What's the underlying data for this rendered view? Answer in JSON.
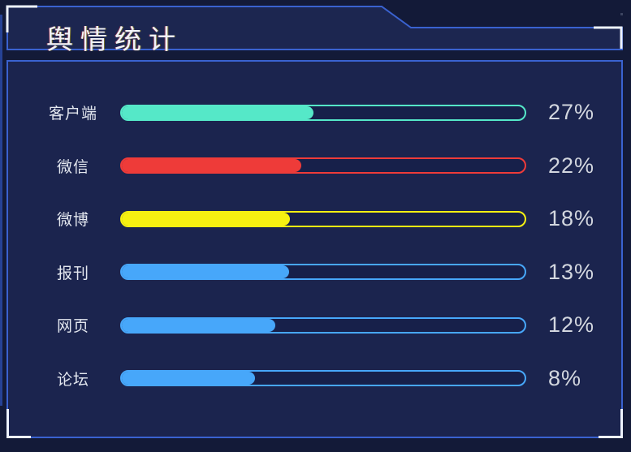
{
  "header": {
    "title": "舆情统计"
  },
  "colors": {
    "page_bg": "#131a38",
    "panel_bg": "#1b244e",
    "panel_border": "#3a62d0",
    "corner_bracket": "#edf2fc",
    "label_text": "#e3e7ef",
    "percent_text": "#d3d7df",
    "bar_teal": "#55e8c8",
    "bar_red": "#ee3b39",
    "bar_yellow": "#f6f011",
    "bar_blue": "#47a7fa"
  },
  "chart_data": {
    "type": "bar",
    "orientation": "horizontal",
    "title": "舆情统计",
    "categories": [
      "客户端",
      "微信",
      "微博",
      "报刊",
      "网页",
      "论坛"
    ],
    "values": [
      27,
      22,
      18,
      13,
      12,
      8
    ],
    "unit": "%",
    "legend": "none",
    "grid": "off",
    "rows": [
      {
        "label": "客户端",
        "value": 27,
        "percent_label": "27%",
        "color": "#55e8c8",
        "fill_pct": 47.6
      },
      {
        "label": "微信",
        "value": 22,
        "percent_label": "22%",
        "color": "#ee3b39",
        "fill_pct": 44.6
      },
      {
        "label": "微博",
        "value": 18,
        "percent_label": "18%",
        "color": "#f6f011",
        "fill_pct": 41.7
      },
      {
        "label": "报刊",
        "value": 13,
        "percent_label": "13%",
        "color": "#47a7fa",
        "fill_pct": 41.5
      },
      {
        "label": "网页",
        "value": 12,
        "percent_label": "12%",
        "color": "#47a7fa",
        "fill_pct": 38.1
      },
      {
        "label": "论坛",
        "value": 8,
        "percent_label": "8%",
        "color": "#47a7fa",
        "fill_pct": 33.1
      }
    ]
  }
}
